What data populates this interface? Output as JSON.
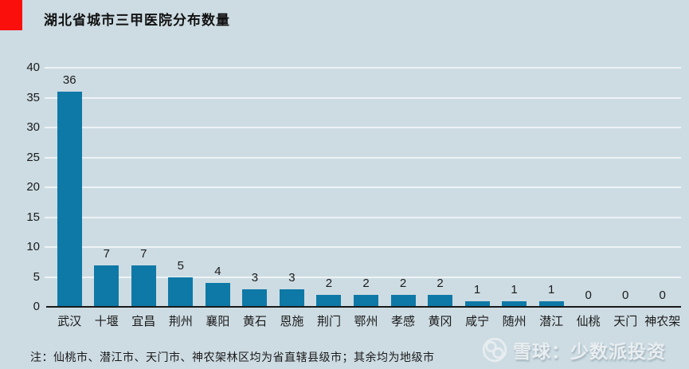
{
  "header": {
    "title": "湖北省城市三甲医院分布数量",
    "accent_color": "#fb0f0c"
  },
  "chart_data": {
    "type": "bar",
    "title": "湖北省城市三甲医院分布数量",
    "categories": [
      "武汉",
      "十堰",
      "宜昌",
      "荆州",
      "襄阳",
      "黄石",
      "恩施",
      "荆门",
      "鄂州",
      "孝感",
      "黄冈",
      "咸宁",
      "随州",
      "潜江",
      "仙桃",
      "天门",
      "神农架"
    ],
    "values": [
      36,
      7,
      7,
      5,
      4,
      3,
      3,
      2,
      2,
      2,
      2,
      1,
      1,
      1,
      0,
      0,
      0
    ],
    "xlabel": "",
    "ylabel": "",
    "ylim": [
      0,
      40
    ],
    "yticks": [
      0,
      5,
      10,
      15,
      20,
      25,
      30,
      35,
      40
    ],
    "grid": true,
    "value_labels": true,
    "legend": "none",
    "bar_color": "#0e79a6"
  },
  "footnote": {
    "text": "注：仙桃市、潜江市、天门市、神农架林区均为省直辖县级市；其余均为地级市"
  },
  "watermark": {
    "logo": "xueqiu-logo",
    "text": "雪球：少数派投资"
  },
  "colors": {
    "background": "#cddce3",
    "bar": "#0e79a6",
    "accent_red": "#fb0f0c",
    "axis_line": "#1a1a1a",
    "gridline": "#eef3f6",
    "text": "#1a1a1a",
    "watermark_text": "#e9eef1"
  }
}
